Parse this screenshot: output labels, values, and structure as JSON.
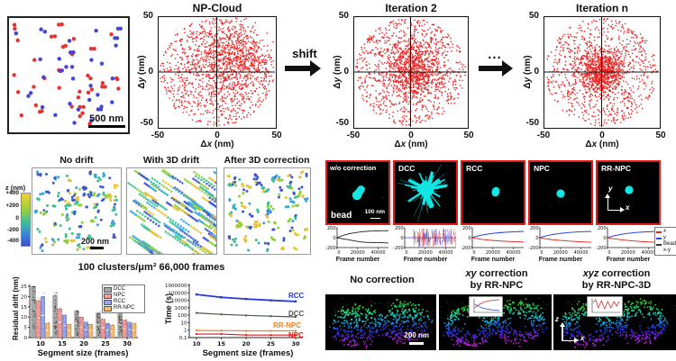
{
  "figure": {
    "panel_a": {
      "scale_bar": "500 nm"
    },
    "np_row": {
      "panels": [
        {
          "title": "NP-Cloud"
        },
        {
          "title": "Iteration 2"
        },
        {
          "title": "Iteration n"
        }
      ],
      "ylabel": {
        "pre": "Δ",
        "var": "y",
        "suf": " (nm)"
      },
      "xlabel": {
        "pre": "Δ",
        "var": "x",
        "suf": " (nm)"
      },
      "yticks": [
        "50",
        "0",
        "-50"
      ],
      "xticks": [
        "-50",
        "0",
        "50"
      ],
      "shift_label": "shift",
      "ellipsis": "..."
    },
    "drift_row": {
      "titles": [
        "No drift",
        "With 3D drift",
        "After 3D correction"
      ],
      "colorbar": {
        "title": "z (nm)",
        "ticks": [
          "+400",
          "+200",
          "0",
          "-200",
          "-400"
        ]
      },
      "scale_bar": "200 nm",
      "caption": "100 clusters/μm²  66,000 frames"
    },
    "bead_row": {
      "labels": [
        "w/o correction",
        "DCC",
        "RCC",
        "NPC",
        "RR-NPC"
      ],
      "bead_label": "bead",
      "scale_bar": "100 nm",
      "y_axis": "y",
      "x_axis": "x",
      "border_color": "#e81818",
      "blob_color": "#10e6e6"
    },
    "trace_row": {
      "xlabel": "Frame number",
      "legend": [
        {
          "label": "x",
          "color": "#e02020"
        },
        {
          "label": "y",
          "color": "#3048e0"
        },
        {
          "label": "Bead x-y",
          "color": "#333333"
        }
      ]
    },
    "bar_chart": {
      "ylabel": "Residual drift (nm)",
      "xlabel": "Segment size (frames)"
    },
    "time_chart": {
      "ylabel": "Time (s)",
      "xlabel": "Segment size (frames)"
    },
    "cell_row": {
      "titles": [
        {
          "italic": "",
          "rest": "No correction",
          "line2": ""
        },
        {
          "italic": "xy",
          "rest": " correction",
          "line2": "by RR-NPC"
        },
        {
          "italic": "xyz",
          "rest": " correction",
          "line2": "by RR-NPC-3D"
        }
      ],
      "scale_bar": "200 nm",
      "z_axis": "z",
      "x_axis": "x"
    }
  },
  "chart_data": [
    {
      "id": "np_clouds",
      "type": "scatter",
      "xlabel": "Δx (nm)",
      "ylabel": "Δy (nm)",
      "xlim": [
        -50,
        50
      ],
      "ylim": [
        -50,
        50
      ],
      "point_color": "#ee2222",
      "panels": [
        {
          "title": "NP-Cloud",
          "n_points": 1600,
          "core_center": [
            11,
            9
          ],
          "core_sigma": 17,
          "core_fraction": 0.45
        },
        {
          "title": "Iteration 2",
          "n_points": 1650,
          "core_center": [
            2,
            2
          ],
          "core_sigma": 13,
          "core_fraction": 0.48
        },
        {
          "title": "Iteration n",
          "n_points": 1650,
          "core_center": [
            0,
            0
          ],
          "core_sigma": 10,
          "core_fraction": 0.52
        }
      ]
    },
    {
      "id": "localizations_2color",
      "type": "scatter",
      "n_red": 38,
      "n_blue": 34,
      "colors": [
        "#e63232",
        "#4343dd"
      ],
      "scale_bar": "500 nm"
    },
    {
      "id": "drift_sim",
      "type": "scatter",
      "panels": [
        "No drift",
        "With 3D drift",
        "After 3D correction"
      ],
      "z_colorbar": {
        "title": "z (nm)",
        "range": [
          -400,
          400
        ]
      },
      "palette": [
        "#e8c232",
        "#8fcf3c",
        "#3cc08f",
        "#36a8d8",
        "#3c58d0"
      ],
      "caption": "100 clusters/μm²  66,000 frames"
    },
    {
      "id": "bead_images",
      "type": "image-panels",
      "labels": [
        "w/o correction",
        "DCC",
        "RCC",
        "NPC",
        "RR-NPC"
      ],
      "blob_color": "#10e6e6",
      "scale_bar": "100 nm"
    },
    {
      "id": "bead_traces",
      "type": "line",
      "xlabel": "Frame number",
      "xlim": [
        0,
        50000
      ],
      "ylim": [
        -200,
        200
      ],
      "xticks": [
        0,
        20000,
        40000
      ],
      "yticks": [
        200,
        0,
        -200
      ],
      "panels": [
        "w/o correction",
        "DCC",
        "RCC",
        "NPC",
        "RR-NPC"
      ],
      "series_legend": [
        "x",
        "y",
        "Bead x-y"
      ],
      "description": "x (red) and y (blue) drift estimates vs bead trajectory (black). Bead drifts to about +150 nm and -120 nm over 50000 frames; DCC estimate is unstable noise; RCC/NPC/RR-NPC track the bead smoothly."
    },
    {
      "id": "residual_drift",
      "type": "bar",
      "ylabel": "Residual drift (nm)",
      "xlabel": "Segment size (frames)",
      "ylim": [
        0,
        25
      ],
      "yticks": [
        0,
        5,
        10,
        15,
        20,
        25
      ],
      "categories": [
        "10",
        "15",
        "20",
        "25",
        "30"
      ],
      "series": [
        {
          "name": "DCC",
          "color": "#a8a8a8",
          "dot_color": "#111111",
          "values": [
            25,
            20.5,
            13,
            12,
            11.5
          ]
        },
        {
          "name": "NPC",
          "color": "#f59b9b",
          "dot_color": "#e25555",
          "values": [
            18,
            14,
            10,
            9,
            8.5
          ]
        },
        {
          "name": "RCC",
          "color": "#98a6f2",
          "dot_color": "#5060d8",
          "values": [
            20,
            11,
            7.5,
            7,
            7.5
          ]
        },
        {
          "name": "RR-NPC",
          "color": "#f8bd77",
          "dot_color": "#eb8f3f",
          "values": [
            7,
            6.5,
            6.5,
            6,
            7
          ]
        }
      ],
      "legend_position": "top-right"
    },
    {
      "id": "compute_time",
      "type": "line",
      "ylabel": "Time (s)",
      "xlabel": "Segment size (frames)",
      "y_scale": "log",
      "ylim": [
        0.1,
        1000000
      ],
      "yticks": [
        0.1,
        1,
        10,
        100,
        1000,
        10000,
        100000,
        1000000
      ],
      "x": [
        10,
        15,
        20,
        25,
        30
      ],
      "series": [
        {
          "name": "RCC",
          "color": "#2238d8",
          "values": [
            60000,
            25000,
            15000,
            10000,
            7000
          ]
        },
        {
          "name": "DCC",
          "color": "#505050",
          "values": [
            200,
            130,
            95,
            75,
            60
          ]
        },
        {
          "name": "RR-NPC",
          "color": "#f28018",
          "values": [
            0.9,
            0.85,
            0.8,
            0.8,
            0.8
          ]
        },
        {
          "name": "NPC",
          "color": "#e81818",
          "values": [
            0.3,
            0.3,
            0.22,
            0.22,
            0.22
          ]
        }
      ]
    },
    {
      "id": "cell_xz_sections",
      "type": "image-panels",
      "titles": [
        "No correction",
        "xy correction by RR-NPC",
        "xyz correction by RR-NPC-3D"
      ],
      "z_palette": [
        "#30e020",
        "#10e0e0",
        "#2838f0",
        "#e818e8"
      ],
      "scale_bar": "200 nm"
    }
  ]
}
